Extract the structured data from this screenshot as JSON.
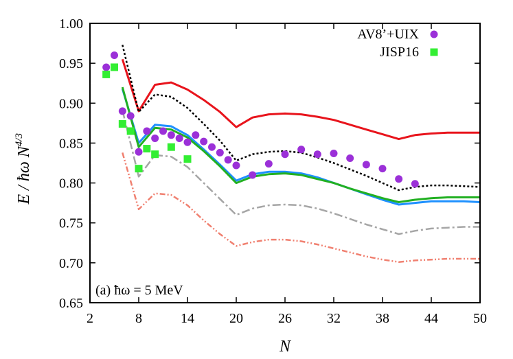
{
  "chart_data": {
    "type": "line",
    "title": "",
    "xlabel": "N",
    "ylabel": "E / ħω N^4/3",
    "ylabel_base": "E / ħω N",
    "ylabel_sup": "4/3",
    "xlim": [
      2,
      50
    ],
    "ylim": [
      0.65,
      1.0
    ],
    "xticks": [
      2,
      8,
      14,
      20,
      26,
      32,
      38,
      44,
      50
    ],
    "xtick_labels": [
      "2",
      "8",
      "14",
      "20",
      "26",
      "32",
      "38",
      "44",
      "50"
    ],
    "yticks": [
      0.65,
      0.7,
      0.75,
      0.8,
      0.85,
      0.9,
      0.95,
      1.0
    ],
    "ytick_labels": [
      "0.65",
      "0.70",
      "0.75",
      "0.80",
      "0.85",
      "0.90",
      "0.95",
      "1.00"
    ],
    "grid": false,
    "legend_position": "top-right",
    "annotation": "(a) ħω = 5 MeV",
    "colors": {
      "red": "#e8141c",
      "black": "#000000",
      "blue": "#1e90ff",
      "green": "#22b022",
      "gray": "#a6a6a6",
      "salmon": "#f08070",
      "purple": "#9b30d8",
      "lime": "#33ee33"
    },
    "series": [
      {
        "color": "#e8141c",
        "style": "solid",
        "x": [
          6,
          8,
          10,
          12,
          14,
          16,
          18,
          20,
          22,
          24,
          26,
          28,
          30,
          32,
          34,
          36,
          38,
          40,
          42,
          44,
          46,
          48,
          50
        ],
        "values": [
          0.955,
          0.89,
          0.923,
          0.926,
          0.917,
          0.904,
          0.889,
          0.87,
          0.882,
          0.886,
          0.887,
          0.886,
          0.883,
          0.879,
          0.873,
          0.867,
          0.861,
          0.855,
          0.86,
          0.862,
          0.863,
          0.863,
          0.863
        ]
      },
      {
        "color": "#000000",
        "style": "dotted",
        "x": [
          6,
          8,
          10,
          12,
          14,
          16,
          18,
          20,
          22,
          24,
          26,
          28,
          30,
          32,
          34,
          36,
          38,
          40,
          42,
          44,
          46,
          48,
          50
        ],
        "values": [
          0.973,
          0.889,
          0.911,
          0.908,
          0.894,
          0.874,
          0.853,
          0.828,
          0.836,
          0.839,
          0.84,
          0.838,
          0.832,
          0.825,
          0.817,
          0.809,
          0.8,
          0.791,
          0.795,
          0.797,
          0.797,
          0.796,
          0.795
        ]
      },
      {
        "color": "#1e90ff",
        "style": "solid",
        "x": [
          6,
          8,
          10,
          12,
          14,
          16,
          18,
          20,
          22,
          24,
          26,
          28,
          30,
          32,
          34,
          36,
          38,
          40,
          42,
          44,
          46,
          48,
          50
        ],
        "values": [
          0.918,
          0.85,
          0.873,
          0.871,
          0.86,
          0.842,
          0.823,
          0.803,
          0.811,
          0.814,
          0.814,
          0.812,
          0.807,
          0.8,
          0.793,
          0.786,
          0.779,
          0.773,
          0.775,
          0.777,
          0.777,
          0.777,
          0.776
        ]
      },
      {
        "color": "#22b022",
        "style": "solid",
        "x": [
          6,
          8,
          10,
          12,
          14,
          16,
          18,
          20,
          22,
          24,
          26,
          28,
          30,
          32,
          34,
          36,
          38,
          40,
          42,
          44,
          46,
          48,
          50
        ],
        "values": [
          0.92,
          0.845,
          0.869,
          0.867,
          0.857,
          0.84,
          0.821,
          0.8,
          0.808,
          0.811,
          0.812,
          0.81,
          0.805,
          0.8,
          0.793,
          0.787,
          0.781,
          0.776,
          0.779,
          0.781,
          0.782,
          0.782,
          0.782
        ]
      },
      {
        "color": "#a6a6a6",
        "style": "dashdot",
        "x": [
          6,
          8,
          10,
          12,
          14,
          16,
          18,
          20,
          22,
          24,
          26,
          28,
          30,
          32,
          34,
          36,
          38,
          40,
          42,
          44,
          46,
          48,
          50
        ],
        "values": [
          0.891,
          0.808,
          0.835,
          0.833,
          0.82,
          0.8,
          0.78,
          0.76,
          0.768,
          0.772,
          0.773,
          0.772,
          0.768,
          0.762,
          0.755,
          0.748,
          0.742,
          0.736,
          0.74,
          0.743,
          0.744,
          0.745,
          0.745
        ]
      },
      {
        "color": "#f08070",
        "style": "dashdotdot",
        "x": [
          6,
          8,
          10,
          12,
          14,
          16,
          18,
          20,
          22,
          24,
          26,
          28,
          30,
          32,
          34,
          36,
          38,
          40,
          42,
          44,
          46,
          48,
          50
        ],
        "values": [
          0.838,
          0.767,
          0.787,
          0.785,
          0.772,
          0.753,
          0.736,
          0.721,
          0.726,
          0.729,
          0.729,
          0.727,
          0.723,
          0.718,
          0.713,
          0.708,
          0.704,
          0.701,
          0.703,
          0.704,
          0.705,
          0.705,
          0.705
        ]
      },
      {
        "name": "AV8’+UIX",
        "color": "#9b30d8",
        "style": "circle",
        "x": [
          4,
          5,
          6,
          7,
          8,
          9,
          10,
          11,
          12,
          13,
          14,
          15,
          16,
          17,
          18,
          19,
          20,
          22,
          24,
          26,
          28,
          30,
          32,
          34,
          36,
          38,
          40,
          42
        ],
        "values": [
          0.945,
          0.96,
          0.89,
          0.884,
          0.839,
          0.865,
          0.856,
          0.865,
          0.86,
          0.856,
          0.851,
          0.86,
          0.852,
          0.845,
          0.838,
          0.829,
          0.822,
          0.81,
          0.824,
          0.836,
          0.842,
          0.836,
          0.837,
          0.831,
          0.823,
          0.818,
          0.805,
          0.799
        ]
      },
      {
        "name": "JISP16",
        "color": "#33ee33",
        "style": "square",
        "x": [
          4,
          5,
          6,
          7,
          8,
          9,
          10,
          12,
          14
        ],
        "values": [
          0.936,
          0.945,
          0.874,
          0.865,
          0.818,
          0.843,
          0.836,
          0.845,
          0.83
        ]
      }
    ]
  }
}
